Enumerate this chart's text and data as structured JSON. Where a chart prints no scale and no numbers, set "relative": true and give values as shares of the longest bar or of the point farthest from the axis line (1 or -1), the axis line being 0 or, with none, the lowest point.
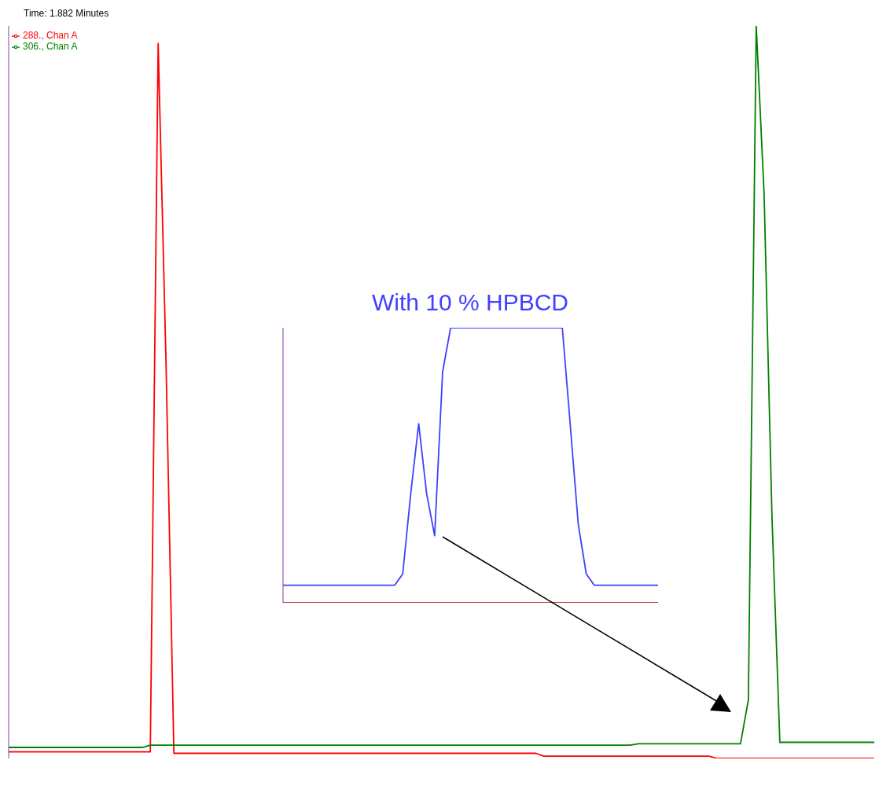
{
  "chart_data": [
    {
      "type": "line",
      "relative": true,
      "annotations": [
        "Time:  1.882  Minutes"
      ],
      "legend": "top left",
      "categories": [
        null,
        null,
        null,
        null,
        null,
        null,
        null,
        null,
        null,
        null,
        null,
        null,
        null,
        null,
        null,
        null,
        null,
        null,
        null,
        null,
        null,
        null,
        null,
        null,
        null,
        null,
        null,
        null,
        null,
        null,
        null,
        null,
        null,
        null,
        null,
        null,
        null,
        null,
        null,
        null,
        null,
        null,
        null,
        null,
        null,
        null,
        null,
        null,
        null,
        null,
        null,
        null,
        null,
        null,
        null,
        null,
        null,
        null,
        null,
        null,
        null,
        null,
        null,
        null,
        null,
        null,
        null,
        null,
        null,
        null,
        null,
        null,
        null,
        null,
        null,
        null,
        null,
        null,
        null,
        null,
        null,
        null,
        null,
        null,
        null,
        null,
        null,
        null,
        null,
        null,
        null,
        null,
        null,
        null,
        null,
        null,
        null,
        null,
        null,
        null,
        null,
        null,
        null,
        null,
        null,
        null,
        null,
        null,
        null,
        null,
        null
      ],
      "series": [
        {
          "name": "288., Chan A",
          "color": "#ff0000",
          "values": [
            0.009,
            0.009,
            0.009,
            0.009,
            0.009,
            0.009,
            0.009,
            0.009,
            0.009,
            0.009,
            0.009,
            0.009,
            0.009,
            0.009,
            0.009,
            0.009,
            0.009,
            0.009,
            0.009,
            0.976,
            0.54,
            0.007,
            0.007,
            0.007,
            0.007,
            0.007,
            0.007,
            0.007,
            0.007,
            0.007,
            0.007,
            0.007,
            0.007,
            0.007,
            0.007,
            0.007,
            0.007,
            0.007,
            0.007,
            0.007,
            0.007,
            0.007,
            0.007,
            0.007,
            0.007,
            0.007,
            0.007,
            0.007,
            0.007,
            0.007,
            0.007,
            0.007,
            0.007,
            0.007,
            0.007,
            0.007,
            0.007,
            0.007,
            0.007,
            0.007,
            0.007,
            0.007,
            0.007,
            0.007,
            0.007,
            0.007,
            0.007,
            0.007,
            0.003,
            0.003,
            0.003,
            0.003,
            0.003,
            0.003,
            0.003,
            0.003,
            0.003,
            0.003,
            0.003,
            0.003,
            0.003,
            0.003,
            0.003,
            0.003,
            0.003,
            0.003,
            0.003,
            0.003,
            0.003,
            0.003,
            0.0,
            0.0,
            0.0,
            0.0,
            0.0,
            0.0,
            0.0,
            0.0,
            0.0,
            0.0,
            0.0,
            0.0,
            0.0,
            0.0,
            0.0,
            0.0,
            0.0,
            0.0,
            0.0,
            0.0,
            0.0
          ]
        },
        {
          "name": "306., Chan A",
          "color": "#008000",
          "values": [
            0.015,
            0.015,
            0.015,
            0.015,
            0.015,
            0.015,
            0.015,
            0.015,
            0.015,
            0.015,
            0.015,
            0.015,
            0.015,
            0.015,
            0.015,
            0.015,
            0.015,
            0.015,
            0.018,
            0.018,
            0.018,
            0.018,
            0.018,
            0.018,
            0.018,
            0.018,
            0.018,
            0.018,
            0.018,
            0.018,
            0.018,
            0.018,
            0.018,
            0.018,
            0.018,
            0.018,
            0.018,
            0.018,
            0.018,
            0.018,
            0.018,
            0.018,
            0.018,
            0.018,
            0.018,
            0.018,
            0.018,
            0.018,
            0.018,
            0.018,
            0.018,
            0.018,
            0.018,
            0.018,
            0.018,
            0.018,
            0.018,
            0.018,
            0.018,
            0.018,
            0.018,
            0.018,
            0.018,
            0.018,
            0.018,
            0.018,
            0.018,
            0.018,
            0.018,
            0.018,
            0.018,
            0.018,
            0.018,
            0.018,
            0.018,
            0.018,
            0.018,
            0.018,
            0.018,
            0.018,
            0.02,
            0.02,
            0.02,
            0.02,
            0.02,
            0.02,
            0.02,
            0.02,
            0.02,
            0.02,
            0.02,
            0.02,
            0.02,
            0.02,
            0.08,
            1.0,
            0.77,
            0.33,
            0.022,
            0.022,
            0.022,
            0.022,
            0.022,
            0.022,
            0.022,
            0.022,
            0.022,
            0.022,
            0.022,
            0.022,
            0.022
          ]
        }
      ]
    },
    {
      "type": "line",
      "relative": true,
      "title": "With  10 % HPBCD",
      "categories": [
        null,
        null,
        null,
        null,
        null,
        null,
        null,
        null,
        null,
        null,
        null,
        null,
        null,
        null,
        null,
        null,
        null,
        null,
        null,
        null,
        null,
        null,
        null,
        null,
        null,
        null,
        null,
        null,
        null,
        null,
        null,
        null,
        null,
        null,
        null,
        null,
        null,
        null,
        null,
        null,
        null,
        null,
        null,
        null,
        null,
        null,
        null,
        null
      ],
      "series": [
        {
          "color": "#4040ff",
          "values": [
            0.064,
            0.064,
            0.064,
            0.064,
            0.064,
            0.064,
            0.064,
            0.064,
            0.064,
            0.064,
            0.064,
            0.064,
            0.064,
            0.064,
            0.064,
            0.105,
            0.396,
            0.651,
            0.396,
            0.244,
            0.84,
            1,
            1,
            1,
            1,
            1,
            1,
            1,
            1,
            1,
            1,
            1,
            1,
            1,
            1,
            1,
            0.645,
            0.285,
            0.105,
            0.064,
            0.064,
            0.064,
            0.064,
            0.064,
            0.064,
            0.064,
            0.064,
            0.064
          ]
        },
        {
          "color": "#c04040",
          "values": [
            0,
            0,
            0,
            0,
            0,
            0,
            0,
            0,
            0,
            0,
            0,
            0,
            0,
            0,
            0,
            0,
            0,
            0,
            0,
            0,
            0,
            0,
            0,
            0,
            0,
            0,
            0,
            0,
            0,
            0,
            0,
            0,
            0,
            0,
            0,
            0,
            0,
            0,
            0,
            0,
            0,
            0,
            0,
            0,
            0,
            0,
            0,
            0
          ]
        }
      ]
    }
  ]
}
